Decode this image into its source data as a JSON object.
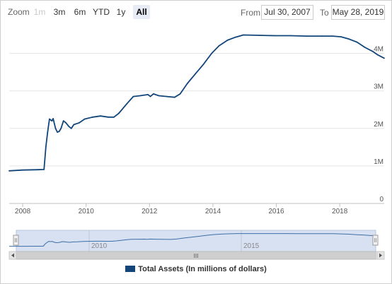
{
  "toolbar": {
    "zoom_label": "Zoom",
    "buttons": [
      "1m",
      "3m",
      "6m",
      "YTD",
      "1y",
      "All"
    ],
    "from_label": "From",
    "from_value": "Jul 30, 2007",
    "to_label": "To",
    "to_value": "May 28, 2019"
  },
  "navigator": {
    "labels": [
      "2010",
      "2015"
    ],
    "scroll_grip": "III"
  },
  "legend": {
    "label": "Total Assets (In millions of dollars)"
  },
  "colors": {
    "series": "#12467a",
    "nav_fill": "#d7e1f2",
    "grid": "#e6e6e6"
  },
  "chart_data": {
    "type": "line",
    "x_axis_type": "datetime",
    "y_ticks": [
      "0",
      "1M",
      "2M",
      "3M",
      "4M"
    ],
    "x_ticks": [
      "2008",
      "2010",
      "2012",
      "2014",
      "2016",
      "2018"
    ],
    "xlim": [
      "2007-07-30",
      "2019-05-28"
    ],
    "ylim": [
      0,
      4800000
    ],
    "series": [
      {
        "name": "Total Assets (In millions of dollars)",
        "points": [
          [
            "2007-07-30",
            870000
          ],
          [
            "2007-12-31",
            890000
          ],
          [
            "2008-06-30",
            900000
          ],
          [
            "2008-09-03",
            905000
          ],
          [
            "2008-09-24",
            1500000
          ],
          [
            "2008-10-15",
            1900000
          ],
          [
            "2008-11-05",
            2250000
          ],
          [
            "2008-12-03",
            2200000
          ],
          [
            "2008-12-17",
            2260000
          ],
          [
            "2009-01-14",
            2000000
          ],
          [
            "2009-02-04",
            1900000
          ],
          [
            "2009-02-25",
            1920000
          ],
          [
            "2009-03-18",
            2000000
          ],
          [
            "2009-04-15",
            2200000
          ],
          [
            "2009-05-13",
            2150000
          ],
          [
            "2009-06-17",
            2050000
          ],
          [
            "2009-07-15",
            2000000
          ],
          [
            "2009-08-12",
            2100000
          ],
          [
            "2009-10-14",
            2150000
          ],
          [
            "2009-12-16",
            2250000
          ],
          [
            "2010-03-17",
            2300000
          ],
          [
            "2010-06-16",
            2330000
          ],
          [
            "2010-09-15",
            2300000
          ],
          [
            "2010-11-17",
            2300000
          ],
          [
            "2011-01-12",
            2400000
          ],
          [
            "2011-04-13",
            2650000
          ],
          [
            "2011-06-29",
            2850000
          ],
          [
            "2011-09-14",
            2870000
          ],
          [
            "2011-12-14",
            2900000
          ],
          [
            "2012-01-11",
            2850000
          ],
          [
            "2012-02-15",
            2920000
          ],
          [
            "2012-04-18",
            2870000
          ],
          [
            "2012-07-18",
            2850000
          ],
          [
            "2012-10-17",
            2830000
          ],
          [
            "2012-12-19",
            2920000
          ],
          [
            "2013-03-13",
            3200000
          ],
          [
            "2013-06-12",
            3450000
          ],
          [
            "2013-09-11",
            3700000
          ],
          [
            "2013-12-18",
            4000000
          ],
          [
            "2014-03-12",
            4200000
          ],
          [
            "2014-06-18",
            4350000
          ],
          [
            "2014-09-17",
            4430000
          ],
          [
            "2014-12-17",
            4490000
          ],
          [
            "2015-06-17",
            4480000
          ],
          [
            "2015-12-16",
            4470000
          ],
          [
            "2016-06-15",
            4470000
          ],
          [
            "2016-12-14",
            4460000
          ],
          [
            "2017-06-14",
            4460000
          ],
          [
            "2017-10-11",
            4460000
          ],
          [
            "2018-01-17",
            4440000
          ],
          [
            "2018-04-18",
            4380000
          ],
          [
            "2018-07-18",
            4300000
          ],
          [
            "2018-10-17",
            4160000
          ],
          [
            "2019-01-16",
            4050000
          ],
          [
            "2019-03-13",
            3960000
          ],
          [
            "2019-05-28",
            3870000
          ]
        ]
      }
    ],
    "grid": true,
    "legend_position": "bottom-center"
  }
}
